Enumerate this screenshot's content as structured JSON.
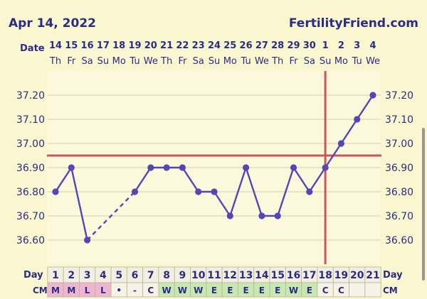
{
  "header": {
    "date": "Apr 14, 2022",
    "brand": "FertilityFriend.com"
  },
  "labels": {
    "date_row": "Date",
    "day_row": "Day",
    "cm_row": "CM"
  },
  "colors": {
    "background": "#faf6cf",
    "plot_background": "#fbf8dc",
    "series_line": "#5546b6",
    "coverline": "#c9575a",
    "ovulation_line": "#c9575a",
    "gridline": "#d3cfaf",
    "cm_menstruation": "#efb6cf",
    "cm_wet_egg": "#c9e8b1",
    "cm_plain": "#f6f3e6"
  },
  "chart_data": {
    "type": "line",
    "title": "",
    "xlabel": "Day",
    "ylabel": "",
    "y_unit": "°C",
    "ylim": [
      36.5,
      37.3
    ],
    "y_ticks": [
      "36.60",
      "36.70",
      "36.80",
      "36.90",
      "37.00",
      "37.10",
      "37.20"
    ],
    "dates": [
      "14",
      "15",
      "16",
      "17",
      "18",
      "19",
      "20",
      "21",
      "22",
      "23",
      "24",
      "25",
      "26",
      "27",
      "28",
      "29",
      "30",
      "1",
      "2",
      "3",
      "4"
    ],
    "weekdays": [
      "Th",
      "Fr",
      "Sa",
      "Su",
      "Mo",
      "Tu",
      "We",
      "Th",
      "Fr",
      "Sa",
      "Su",
      "Mo",
      "Tu",
      "We",
      "Th",
      "Fr",
      "Sa",
      "Su",
      "Mo",
      "Tu",
      "We"
    ],
    "days": [
      1,
      2,
      3,
      4,
      5,
      6,
      7,
      8,
      9,
      10,
      11,
      12,
      13,
      14,
      15,
      16,
      17,
      18,
      19,
      20,
      21
    ],
    "series": [
      {
        "values": [
          36.8,
          36.9,
          36.6,
          null,
          null,
          36.8,
          36.9,
          36.9,
          36.9,
          36.8,
          36.8,
          36.7,
          36.9,
          36.7,
          36.7,
          36.9,
          36.8,
          36.9,
          37.0,
          37.1,
          37.2
        ]
      }
    ],
    "interpolated_segment_days": [
      3,
      6
    ],
    "coverline": 36.95,
    "ovulation_day": 18,
    "cervical_mucus": [
      "M",
      "M",
      "L",
      "L",
      "•",
      "-",
      "C",
      "W",
      "W",
      "W",
      "E",
      "E",
      "E",
      "E",
      "E",
      "W",
      "E",
      "C",
      "C",
      "",
      ""
    ],
    "cervical_mucus_types": [
      "menstruation",
      "menstruation",
      "menstruation",
      "menstruation",
      "plain",
      "plain",
      "plain",
      "wet",
      "wet",
      "wet",
      "egg",
      "egg",
      "egg",
      "egg",
      "egg",
      "wet",
      "egg",
      "plain",
      "plain",
      "plain",
      "plain"
    ]
  }
}
